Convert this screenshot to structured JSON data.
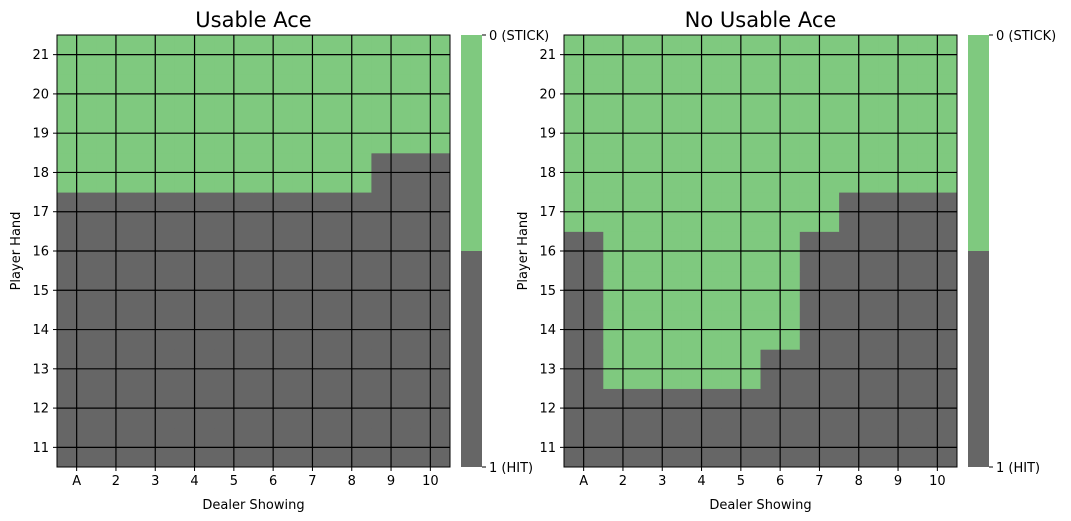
{
  "colors": {
    "stick": "#7fc97f",
    "hit": "#666666",
    "grid": "#000000"
  },
  "chart_data": [
    {
      "type": "heatmap",
      "title": "Usable Ace",
      "xlabel": "Dealer Showing",
      "ylabel": "Player Hand",
      "x_ticks": [
        "A",
        "2",
        "3",
        "4",
        "5",
        "6",
        "7",
        "8",
        "9",
        "10"
      ],
      "y_ticks": [
        "11",
        "12",
        "13",
        "14",
        "15",
        "16",
        "17",
        "18",
        "19",
        "20",
        "21"
      ],
      "colorbar_labels": [
        "0 (STICK)",
        "1 (HIT)"
      ],
      "legend": "colorbar right",
      "grid": true,
      "comment_values": "rows ordered from player hand 11 (bottom) to 21 (top); columns dealer A..10; 0 = STICK, 1 = HIT",
      "values": [
        [
          1,
          1,
          1,
          1,
          1,
          1,
          1,
          1,
          1,
          1
        ],
        [
          1,
          1,
          1,
          1,
          1,
          1,
          1,
          1,
          1,
          1
        ],
        [
          1,
          1,
          1,
          1,
          1,
          1,
          1,
          1,
          1,
          1
        ],
        [
          1,
          1,
          1,
          1,
          1,
          1,
          1,
          1,
          1,
          1
        ],
        [
          1,
          1,
          1,
          1,
          1,
          1,
          1,
          1,
          1,
          1
        ],
        [
          1,
          1,
          1,
          1,
          1,
          1,
          1,
          1,
          1,
          1
        ],
        [
          1,
          1,
          1,
          1,
          1,
          1,
          1,
          1,
          1,
          1
        ],
        [
          0,
          0,
          0,
          0,
          0,
          0,
          0,
          0,
          1,
          1
        ],
        [
          0,
          0,
          0,
          0,
          0,
          0,
          0,
          0,
          0,
          0
        ],
        [
          0,
          0,
          0,
          0,
          0,
          0,
          0,
          0,
          0,
          0
        ],
        [
          0,
          0,
          0,
          0,
          0,
          0,
          0,
          0,
          0,
          0
        ]
      ]
    },
    {
      "type": "heatmap",
      "title": "No Usable Ace",
      "xlabel": "Dealer Showing",
      "ylabel": "Player Hand",
      "x_ticks": [
        "A",
        "2",
        "3",
        "4",
        "5",
        "6",
        "7",
        "8",
        "9",
        "10"
      ],
      "y_ticks": [
        "11",
        "12",
        "13",
        "14",
        "15",
        "16",
        "17",
        "18",
        "19",
        "20",
        "21"
      ],
      "colorbar_labels": [
        "0 (STICK)",
        "1 (HIT)"
      ],
      "legend": "colorbar right",
      "grid": true,
      "values": [
        [
          1,
          1,
          1,
          1,
          1,
          1,
          1,
          1,
          1,
          1
        ],
        [
          1,
          1,
          1,
          1,
          1,
          1,
          1,
          1,
          1,
          1
        ],
        [
          1,
          0,
          0,
          0,
          0,
          1,
          1,
          1,
          1,
          1
        ],
        [
          1,
          0,
          0,
          0,
          0,
          0,
          1,
          1,
          1,
          1
        ],
        [
          1,
          0,
          0,
          0,
          0,
          0,
          1,
          1,
          1,
          1
        ],
        [
          1,
          0,
          0,
          0,
          0,
          0,
          1,
          1,
          1,
          1
        ],
        [
          0,
          0,
          0,
          0,
          0,
          0,
          0,
          1,
          1,
          1
        ],
        [
          0,
          0,
          0,
          0,
          0,
          0,
          0,
          0,
          0,
          0
        ],
        [
          0,
          0,
          0,
          0,
          0,
          0,
          0,
          0,
          0,
          0
        ],
        [
          0,
          0,
          0,
          0,
          0,
          0,
          0,
          0,
          0,
          0
        ],
        [
          0,
          0,
          0,
          0,
          0,
          0,
          0,
          0,
          0,
          0
        ]
      ]
    }
  ]
}
